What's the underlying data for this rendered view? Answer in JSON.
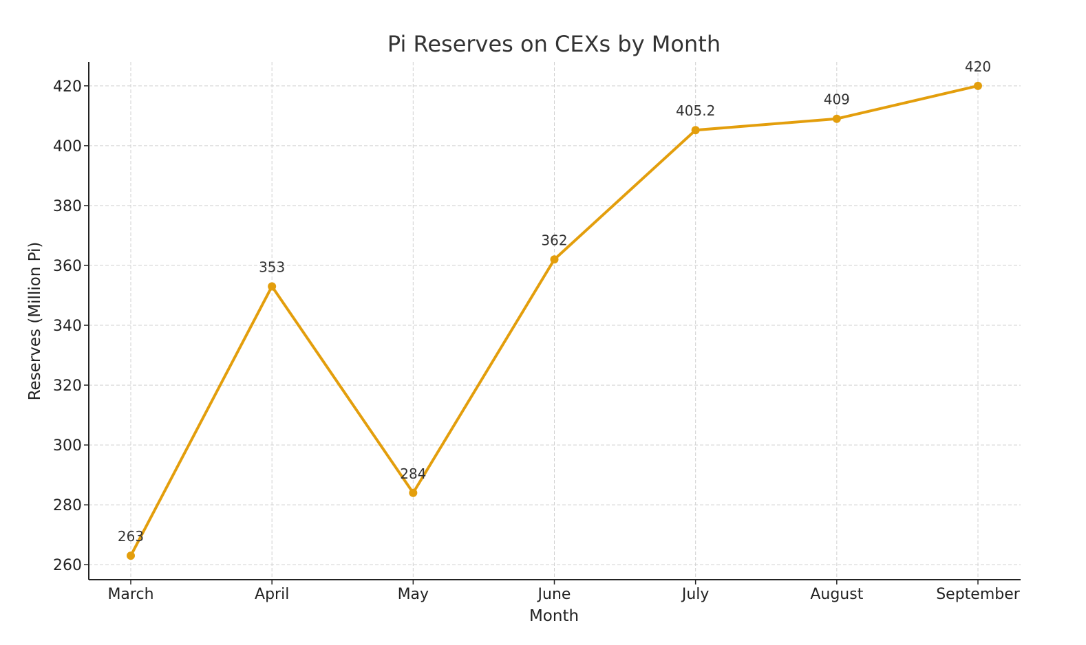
{
  "chart_data": {
    "type": "line",
    "title": "Pi Reserves on CEXs by Month",
    "xlabel": "Month",
    "ylabel": "Reserves (Million Pi)",
    "categories": [
      "March",
      "April",
      "May",
      "June",
      "July",
      "August",
      "September"
    ],
    "series": [
      {
        "values": [
          263,
          353,
          284,
          362,
          405.2,
          409,
          420
        ],
        "color": "#E39E0C"
      }
    ],
    "data_labels": [
      "263",
      "353",
      "284",
      "362",
      "405.2",
      "409",
      "420"
    ],
    "ylim": [
      255,
      428
    ],
    "yticks": [
      260,
      280,
      300,
      320,
      340,
      360,
      380,
      400,
      420
    ],
    "ytick_labels": [
      "260",
      "280",
      "300",
      "320",
      "340",
      "360",
      "380",
      "400",
      "420"
    ],
    "grid": true,
    "grid_style": "dashed",
    "markers": true
  }
}
